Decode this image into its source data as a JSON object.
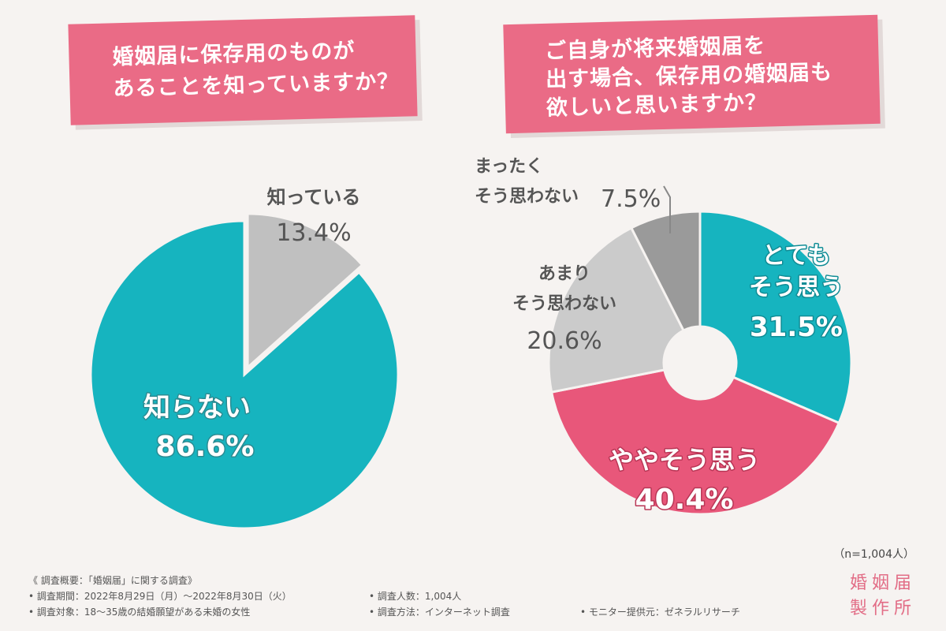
{
  "charts": {
    "left_question": [
      "婚姻届に保存用のものが",
      "あることを知っていますか？"
    ],
    "right_question": [
      "ご自身が将来婚姻届を",
      "出す場合、保存用の婚姻届も",
      "欲しいと思いますか？"
    ]
  },
  "chart_data": [
    {
      "type": "pie",
      "title": "婚姻届に保存用のものがあることを知っていますか？",
      "slices": [
        {
          "label": "知っている",
          "value": 13.4,
          "value_label": "13.4%",
          "color": "#c0c0c0"
        },
        {
          "label": "知らない",
          "value": 86.6,
          "value_label": "86.6%",
          "color": "#16b4bf"
        }
      ]
    },
    {
      "type": "pie",
      "donut": true,
      "title": "ご自身が将来婚姻届を出す場合、保存用の婚姻届も欲しいと思いますか？",
      "slices": [
        {
          "label": "とても\nそう思う",
          "value": 31.5,
          "value_label": "31.5%",
          "color": "#16b4bf"
        },
        {
          "label": "ややそう思う",
          "value": 40.4,
          "value_label": "40.4%",
          "color": "#e8577a"
        },
        {
          "label": "あまり\nそう思わない",
          "value": 20.6,
          "value_label": "20.6%",
          "color": "#cbcbcb"
        },
        {
          "label": "まったく\nそう思わない",
          "value": 7.5,
          "value_label": "7.5%",
          "color": "#9a9a9a"
        }
      ]
    }
  ],
  "sample_size": "（n=1,004人）",
  "notes": {
    "heading": "《 調査概要：「婚姻届」に関する調査》",
    "period": "• 調査期間：2022年8月29日（月）～2022年8月30日（火）",
    "target": "• 調査対象：18～35歳の結婚願望がある未婚の女性",
    "count": "• 調査人数：1,004人",
    "method": "• 調査方法：インターネット調査",
    "provider": "• モニター提供元：ゼネラルリサーチ"
  },
  "brand": [
    "婚姻届",
    "製作所"
  ]
}
